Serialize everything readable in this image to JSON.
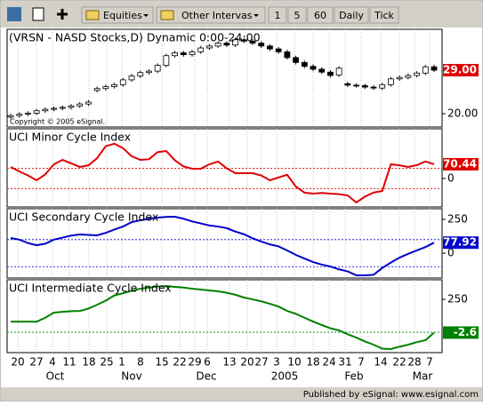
{
  "toolbar": {
    "buttons": [
      "Equities",
      "Other Intervas",
      "1",
      "5",
      "60",
      "Daily",
      "Tick"
    ]
  },
  "status_bar": "Published by eSignal: www.esignal.com",
  "x_axis": {
    "days": [
      "20",
      "27",
      "4",
      "11",
      "18",
      "25",
      "1",
      "8",
      "15",
      "22",
      "29",
      "6",
      "13",
      "20",
      "27",
      "3",
      "10",
      "18",
      "24",
      "31",
      "7",
      "14",
      "22",
      "28",
      "7"
    ],
    "months": [
      "Oct",
      "Nov",
      "Dec",
      "2005",
      "Feb",
      "Mar"
    ]
  },
  "chart_data": [
    {
      "type": "candlestick",
      "title": "(VRSN - NASD Stocks,D) Dynamic 0:00-24:00",
      "annotation": "Copyright © 2005 eSignal.",
      "up_color": "#ffffff",
      "down_color": "#000000",
      "color": "#000000",
      "open": [
        19.3,
        19.6,
        19.9,
        20.1,
        20.6,
        20.9,
        21.1,
        21.3,
        21.6,
        22.0,
        24.8,
        25.2,
        25.6,
        26.0,
        27.0,
        27.8,
        28.5,
        28.8,
        30.0,
        32.0,
        32.6,
        32.2,
        32.8,
        33.6,
        34.0,
        34.6,
        34.2,
        35.3,
        35.0,
        34.6,
        34.0,
        33.4,
        32.8,
        31.6,
        30.6,
        29.8,
        29.2,
        28.6,
        28.0,
        26.2,
        25.9,
        25.8,
        25.5,
        25.3,
        26.0,
        27.2,
        27.5,
        27.9,
        28.4,
        29.7
      ],
      "high": [
        20.0,
        20.3,
        20.5,
        21.0,
        21.3,
        21.5,
        21.7,
        22.0,
        22.4,
        22.8,
        25.6,
        26.0,
        26.4,
        27.4,
        28.2,
        28.9,
        29.2,
        30.4,
        32.4,
        33.0,
        33.0,
        33.2,
        34.0,
        34.4,
        35.0,
        35.0,
        35.7,
        35.7,
        35.4,
        35.0,
        34.4,
        33.8,
        33.2,
        32.0,
        31.0,
        30.2,
        29.6,
        29.0,
        29.8,
        26.6,
        26.3,
        26.2,
        25.9,
        26.4,
        27.6,
        27.9,
        28.3,
        28.8,
        30.1,
        30.1
      ],
      "low": [
        18.9,
        19.2,
        19.5,
        19.7,
        20.2,
        20.5,
        20.7,
        20.9,
        21.2,
        21.6,
        24.4,
        24.8,
        25.2,
        25.6,
        26.6,
        27.4,
        28.1,
        28.4,
        29.6,
        31.6,
        31.8,
        31.8,
        32.4,
        33.2,
        33.6,
        33.8,
        33.8,
        34.6,
        34.2,
        33.6,
        33.0,
        32.4,
        31.2,
        30.2,
        29.4,
        28.8,
        28.2,
        27.5,
        27.6,
        25.5,
        25.4,
        25.1,
        24.9,
        24.9,
        25.6,
        26.8,
        27.1,
        27.5,
        28.0,
        28.6
      ],
      "close": [
        19.6,
        19.9,
        20.1,
        20.6,
        20.9,
        21.1,
        21.3,
        21.6,
        22.0,
        22.4,
        25.2,
        25.6,
        26.0,
        27.0,
        27.8,
        28.5,
        28.8,
        30.0,
        32.0,
        32.6,
        32.2,
        32.8,
        33.6,
        34.0,
        34.6,
        34.2,
        35.3,
        35.0,
        34.6,
        34.0,
        33.4,
        32.8,
        31.6,
        30.6,
        29.8,
        29.2,
        28.6,
        27.9,
        29.4,
        25.9,
        25.8,
        25.5,
        25.3,
        26.0,
        27.2,
        27.5,
        27.9,
        28.4,
        29.7,
        29.0
      ],
      "ylim": [
        17.24,
        37.46
      ],
      "yticks": [
        {
          "value": 20,
          "label": "20.00"
        }
      ],
      "last_label": {
        "value": 29,
        "label": "29.00"
      },
      "label_color": "#e00000"
    },
    {
      "type": "line",
      "title": "UCI Minor Cycle Index",
      "color": "#e00000",
      "values": [
        57,
        35,
        15,
        -9,
        20,
        70,
        92,
        75,
        57,
        65,
        100,
        160,
        172,
        150,
        110,
        92,
        95,
        130,
        136,
        90,
        60,
        48,
        48,
        70,
        84,
        50,
        26,
        26,
        26,
        15,
        -9,
        5,
        18,
        -40,
        -70,
        -75,
        -72,
        -75,
        -78,
        -84,
        -119,
        -90,
        -70,
        -62,
        70,
        65,
        57,
        66,
        84,
        70.44
      ],
      "ylim": [
        -141,
        246
      ],
      "yticks": [
        0
      ],
      "reference_lines": [
        50,
        -50
      ],
      "last_label": 70.44
    },
    {
      "type": "line",
      "title": "UCI Secondary Cycle Index",
      "color": "#0000cc",
      "values": [
        112,
        100,
        75,
        59,
        70,
        100,
        115,
        130,
        138,
        135,
        132,
        150,
        175,
        197,
        230,
        243,
        255,
        263,
        268,
        270,
        255,
        235,
        220,
        205,
        197,
        185,
        160,
        140,
        110,
        86,
        65,
        50,
        20,
        -13,
        -40,
        -66,
        -85,
        -99,
        -120,
        -135,
        -164,
        -164,
        -160,
        -110,
        -70,
        -33,
        -5,
        20,
        45,
        77.92
      ],
      "ylim": [
        -184,
        329
      ],
      "yticks": [
        250,
        0
      ],
      "reference_lines": [
        100,
        -100
      ],
      "last_label": 77.92
    },
    {
      "type": "line",
      "title": "UCI Intermediate Cycle Index",
      "color": "#008000",
      "values": [
        81,
        81,
        81,
        80,
        110,
        149,
        155,
        160,
        162,
        180,
        209,
        240,
        280,
        297,
        315,
        331,
        340,
        348,
        351,
        345,
        340,
        331,
        325,
        318,
        311,
        300,
        285,
        264,
        250,
        235,
        216,
        195,
        162,
        140,
        110,
        81,
        55,
        30,
        14,
        -15,
        -41,
        -70,
        -95,
        -125,
        -128,
        -110,
        -95,
        -75,
        -61,
        -2.6
      ],
      "ylim": [
        -155,
        399
      ],
      "yticks": [
        250
      ],
      "reference_lines": [
        0
      ],
      "last_label": -2.6
    }
  ]
}
